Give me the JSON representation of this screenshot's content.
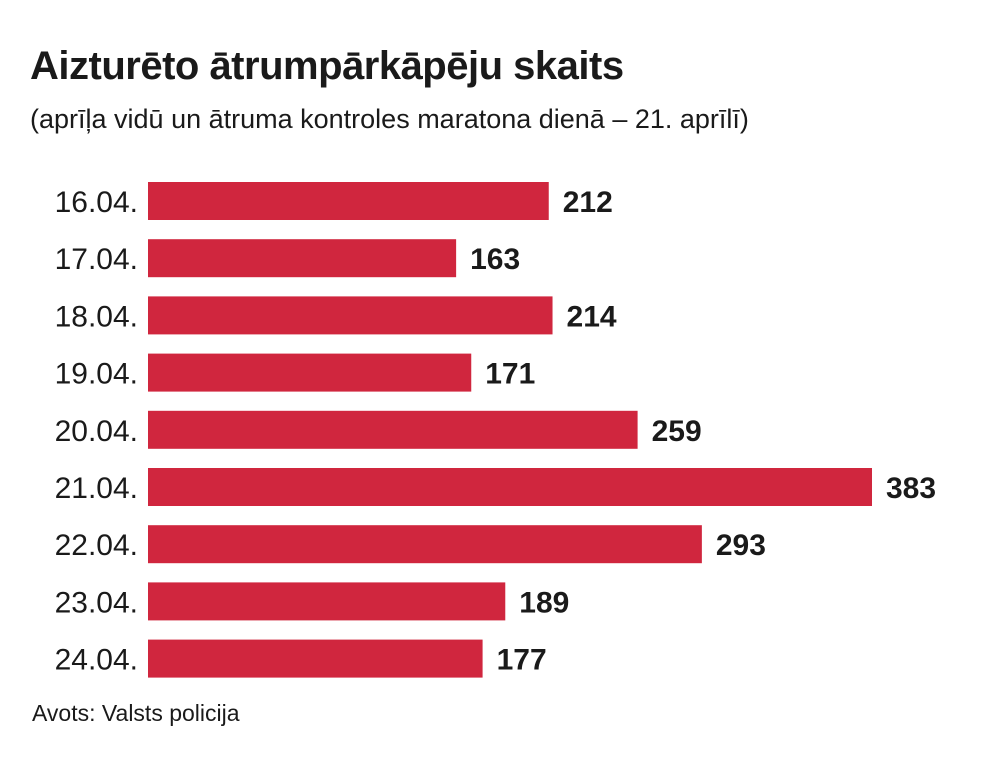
{
  "chart_data": {
    "type": "bar",
    "orientation": "horizontal",
    "title": "Aizturēto ātrumpārkāpēju skaits",
    "subtitle": "(aprīļa vidū un ātruma kontroles maratona dienā – 21. aprīlī)",
    "source": "Avots: Valsts policija",
    "categories": [
      "16.04.",
      "17.04.",
      "18.04.",
      "19.04.",
      "20.04.",
      "21.04.",
      "22.04.",
      "23.04.",
      "24.04."
    ],
    "values": [
      212,
      163,
      214,
      171,
      259,
      383,
      293,
      189,
      177
    ],
    "value_labels": [
      "212",
      "163",
      "214",
      "171",
      "259",
      "383",
      "293",
      "189",
      "177"
    ],
    "bar_color": "#d0263e",
    "grid": false,
    "legend": "none"
  }
}
